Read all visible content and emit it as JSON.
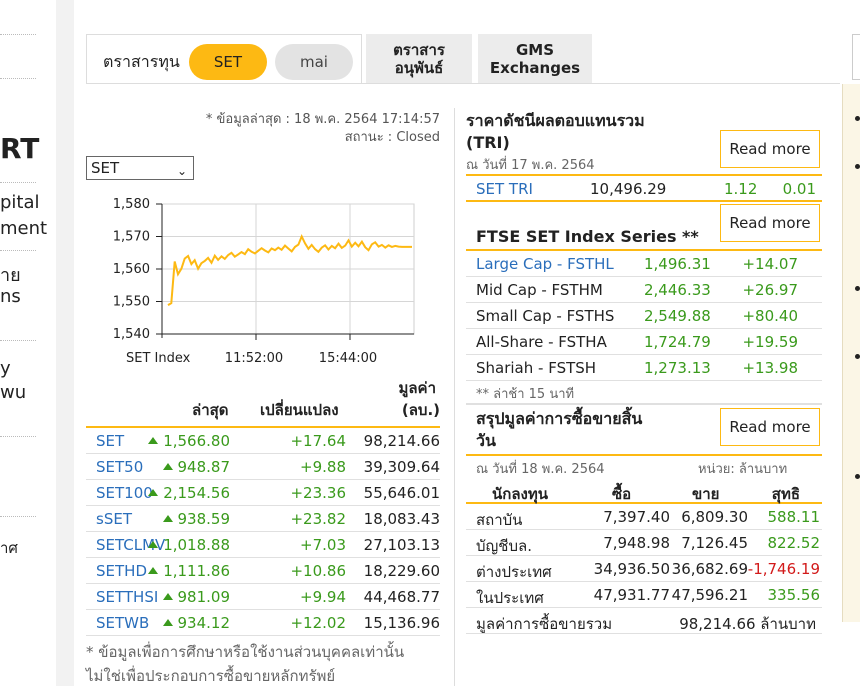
{
  "sidebar": {
    "fragments": [
      "RT",
      "pital",
      "ment",
      "าย",
      "ns",
      "y",
      "wu",
      "าศ"
    ]
  },
  "tabs": {
    "index_label": "ตราสารทุน",
    "set_pill": "SET",
    "mai_pill": "mai",
    "derivatives_line1": "ตราสาร",
    "derivatives_line2": "อนุพันธ์",
    "gms_line1": "GMS",
    "gms_line2": "Exchanges"
  },
  "status": {
    "updated": "* ข้อมูลล่าสุด : 18 พ.ค. 2564 17:14:57",
    "state": "สถานะ : Closed"
  },
  "market_select": {
    "value": "SET"
  },
  "chart_data": {
    "type": "line",
    "title": "",
    "xlabel": "SET Index",
    "ylabel": "",
    "x_ticks": [
      "11:52:00",
      "15:44:00"
    ],
    "y_ticks": [
      1540,
      1550,
      1560,
      1570,
      1580
    ],
    "ylim": [
      1540,
      1580
    ],
    "grid": true,
    "color": "#fdb913",
    "series": [
      {
        "values": [
          1548.9,
          1549.5,
          1562.3,
          1558.4,
          1560.1,
          1563.2,
          1564.0,
          1561.5,
          1562.7,
          1560.1,
          1561.8,
          1562.5,
          1563.4,
          1561.9,
          1564.1,
          1562.8,
          1563.9,
          1563.1,
          1564.3,
          1565.0,
          1563.8,
          1564.5,
          1565.2,
          1564.6,
          1566.1,
          1565.3,
          1564.8,
          1565.6,
          1566.4,
          1565.7,
          1565.1,
          1566.3,
          1565.8,
          1566.6,
          1565.9,
          1567.2,
          1566.3,
          1565.4,
          1566.8,
          1567.5,
          1570.0,
          1567.9,
          1566.2,
          1567.4,
          1566.1,
          1565.3,
          1566.6,
          1567.3,
          1566.0,
          1567.1,
          1566.4,
          1567.8,
          1566.5,
          1567.2,
          1568.8,
          1566.9,
          1568.1,
          1567.0,
          1568.4,
          1566.7,
          1565.8,
          1567.6,
          1568.2,
          1566.9,
          1567.4,
          1566.6,
          1567.3,
          1566.8,
          1567.1,
          1566.9,
          1566.8,
          1566.8,
          1566.8,
          1566.8
        ]
      }
    ]
  },
  "set_table": {
    "headers": {
      "last": "ล่าสุด",
      "change": "เปลี่ยนแปลง",
      "value_line1": "มูลค่า",
      "value_line2": "(ลบ.)"
    },
    "rows": [
      {
        "symbol": "SET",
        "last": "1,566.80",
        "change": "+17.64",
        "value": "98,214.66"
      },
      {
        "symbol": "SET50",
        "last": "948.87",
        "change": "+9.88",
        "value": "39,309.64"
      },
      {
        "symbol": "SET100",
        "last": "2,154.56",
        "change": "+23.36",
        "value": "55,646.01"
      },
      {
        "symbol": "sSET",
        "last": "938.59",
        "change": "+23.82",
        "value": "18,083.43"
      },
      {
        "symbol": "SETCLMV",
        "last": "1,018.88",
        "change": "+7.03",
        "value": "27,103.13"
      },
      {
        "symbol": "SETHD",
        "last": "1,111.86",
        "change": "+10.86",
        "value": "18,229.60"
      },
      {
        "symbol": "SETTHSI",
        "last": "981.09",
        "change": "+9.94",
        "value": "44,468.77"
      },
      {
        "symbol": "SETWB",
        "last": "934.12",
        "change": "+12.02",
        "value": "15,136.96"
      }
    ],
    "note_line1": "* ข้อมูลเพื่อการศึกษาหรือใช้งานส่วนบุคคลเท่านั้น",
    "note_line2": "ไม่ใช่เพื่อประกอบการซื้อขายหลักทรัพย์"
  },
  "tri": {
    "title_line1": "ราคาดัชนีผลตอบแทนรวม",
    "title_line2": "(TRI)",
    "date": "ณ วันที่ 17 พ.ค. 2564",
    "read_more": "Read more",
    "row": {
      "name": "SET TRI",
      "value": "10,496.29",
      "change": "1.12",
      "pct": "0.01"
    }
  },
  "ftse": {
    "title": "FTSE SET Index Series **",
    "read_more": "Read more",
    "rows": [
      {
        "name": "Large Cap - FSTHL",
        "value": "1,496.31",
        "change": "+14.07"
      },
      {
        "name": "Mid Cap - FSTHM",
        "value": "2,446.33",
        "change": "+26.97"
      },
      {
        "name": "Small Cap - FSTHS",
        "value": "2,549.88",
        "change": "+80.40"
      },
      {
        "name": "All-Share - FSTHA",
        "value": "1,724.79",
        "change": "+19.59"
      },
      {
        "name": "Shariah - FSTSH",
        "value": "1,273.13",
        "change": "+13.98"
      }
    ],
    "note": "** ล่าช้า 15 นาที"
  },
  "trading": {
    "title_line1": "สรุปมูลค่าการซื้อขายสิ้น",
    "title_line2": "วัน",
    "read_more": "Read more",
    "date": "ณ วันที่ 18 พ.ค. 2564",
    "unit": "หน่วย: ล้านบาท",
    "headers": {
      "investor": "นักลงทุน",
      "buy": "ซื้อ",
      "sell": "ขาย",
      "net": "สุทธิ"
    },
    "rows": [
      {
        "investor": "สถาบัน",
        "buy": "7,397.40",
        "sell": "6,809.30",
        "net": "588.11",
        "net_color": "#3a9a1c"
      },
      {
        "investor": "บัญชีบล.",
        "buy": "7,948.98",
        "sell": "7,126.45",
        "net": "822.52",
        "net_color": "#3a9a1c"
      },
      {
        "investor": "ต่างประเทศ",
        "buy": "34,936.50",
        "sell": "36,682.69",
        "net": "-1,746.19",
        "net_color": "#d21a1a"
      },
      {
        "investor": "ในประเทศ",
        "buy": "47,931.77",
        "sell": "47,596.21",
        "net": "335.56",
        "net_color": "#3a9a1c"
      }
    ],
    "total_label": "มูลค่าการซื้อขายรวม",
    "total_value": "98,214.66 ล้านบาท"
  }
}
